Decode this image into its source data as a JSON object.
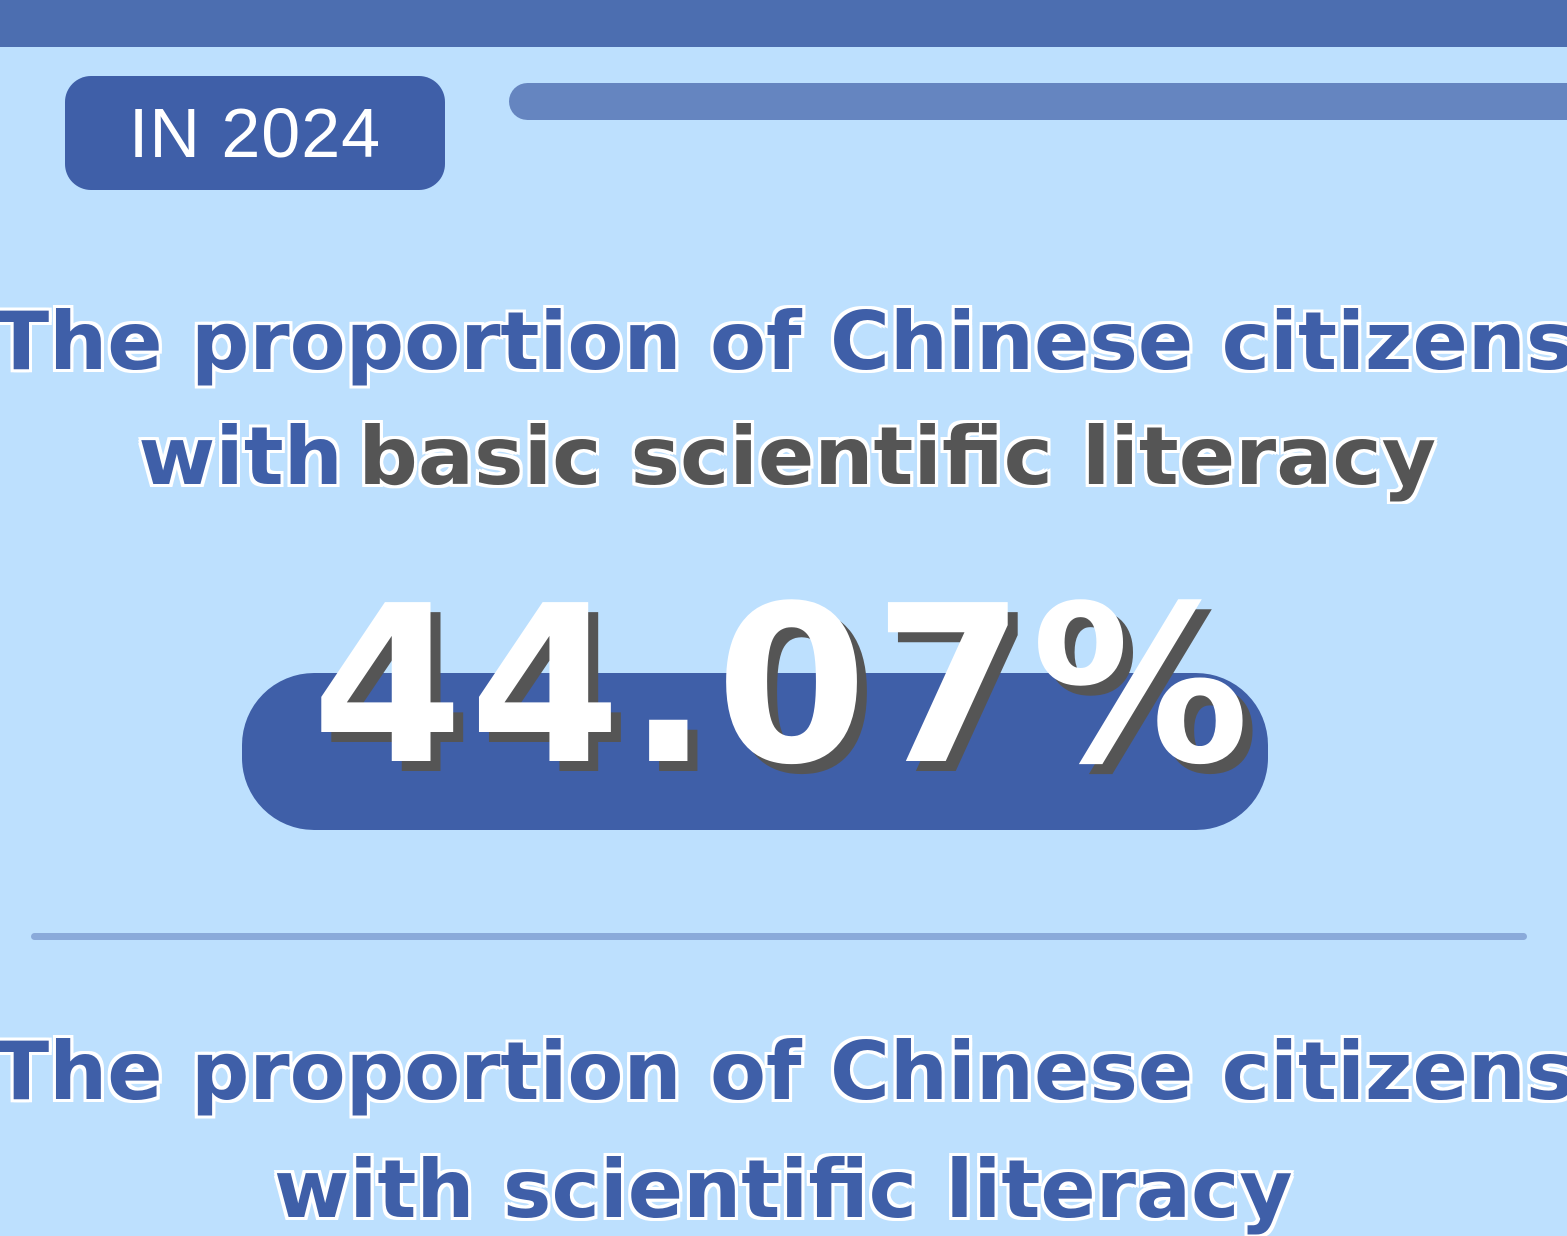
{
  "badge": {
    "year_label": "IN 2024"
  },
  "section1": {
    "line1": "The proportion of Chinese citizens",
    "line2_prefix": "with",
    "line2_highlight": "basic scientific literacy",
    "value": "44.07%"
  },
  "section2": {
    "line1": "The proportion of Chinese citizens",
    "line2": "with scientific literacy"
  },
  "colors": {
    "background": "#bde0fe",
    "primary": "#3f5fa8",
    "highlight_text": "#555555",
    "top_bar": "#4c6eb0"
  }
}
